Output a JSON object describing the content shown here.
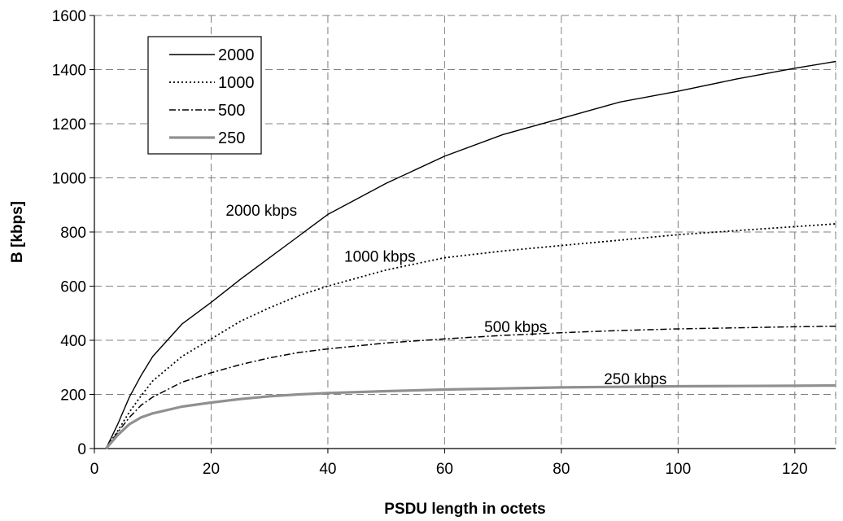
{
  "chart_data": {
    "type": "line",
    "title": "",
    "xlabel": "PSDU length in octets",
    "ylabel": "B [kbps]",
    "xlim": [
      0,
      127
    ],
    "ylim": [
      0,
      1600
    ],
    "x_ticks": [
      0,
      20,
      40,
      60,
      80,
      100,
      120
    ],
    "y_ticks": [
      0,
      200,
      400,
      600,
      800,
      1000,
      1200,
      1400,
      1600
    ],
    "grid": true,
    "legend": {
      "placement": "top-left",
      "entries": [
        "2000",
        "1000",
        "500",
        "250"
      ]
    },
    "series": [
      {
        "name": "2000",
        "color": "#000000",
        "style": "solid",
        "rate": 2000,
        "x": [
          2,
          4,
          6,
          8,
          10,
          15,
          20,
          25,
          30,
          35,
          40,
          50,
          60,
          70,
          80,
          90,
          100,
          110,
          120,
          127
        ],
        "y": [
          0,
          90,
          190,
          270,
          340,
          460,
          540,
          625,
          705,
          785,
          865,
          980,
          1080,
          1160,
          1220,
          1280,
          1320,
          1365,
          1405,
          1430
        ]
      },
      {
        "name": "1000",
        "color": "#000000",
        "style": "dotted",
        "rate": 1000,
        "x": [
          2,
          4,
          6,
          8,
          10,
          15,
          20,
          25,
          30,
          35,
          40,
          50,
          60,
          70,
          80,
          90,
          100,
          110,
          120,
          127
        ],
        "y": [
          0,
          65,
          135,
          195,
          250,
          340,
          405,
          470,
          520,
          565,
          600,
          660,
          705,
          730,
          750,
          770,
          790,
          805,
          820,
          830
        ]
      },
      {
        "name": "500",
        "color": "#000000",
        "style": "dashdot",
        "rate": 500,
        "x": [
          2,
          4,
          6,
          8,
          10,
          15,
          20,
          25,
          30,
          35,
          40,
          50,
          60,
          70,
          80,
          90,
          100,
          110,
          120,
          127
        ],
        "y": [
          0,
          60,
          115,
          160,
          190,
          245,
          280,
          310,
          335,
          355,
          368,
          390,
          405,
          418,
          428,
          436,
          442,
          446,
          450,
          452
        ]
      },
      {
        "name": "250",
        "color": "#909090",
        "style": "solid",
        "rate": 250,
        "x": [
          2,
          4,
          6,
          8,
          10,
          15,
          20,
          25,
          30,
          35,
          40,
          50,
          60,
          70,
          80,
          90,
          100,
          110,
          120,
          127
        ],
        "y": [
          0,
          50,
          90,
          115,
          130,
          155,
          170,
          183,
          193,
          200,
          205,
          212,
          218,
          222,
          226,
          228,
          230,
          231,
          232,
          233
        ]
      }
    ],
    "annotations": [
      {
        "text": "2000 kbps",
        "x": 22.5,
        "y": 860
      },
      {
        "text": "1000 kbps",
        "x": 42.8,
        "y": 690
      },
      {
        "text": "500 kbps",
        "x": 66.8,
        "y": 430
      },
      {
        "text": "250 kbps",
        "x": 87.3,
        "y": 237
      }
    ]
  }
}
